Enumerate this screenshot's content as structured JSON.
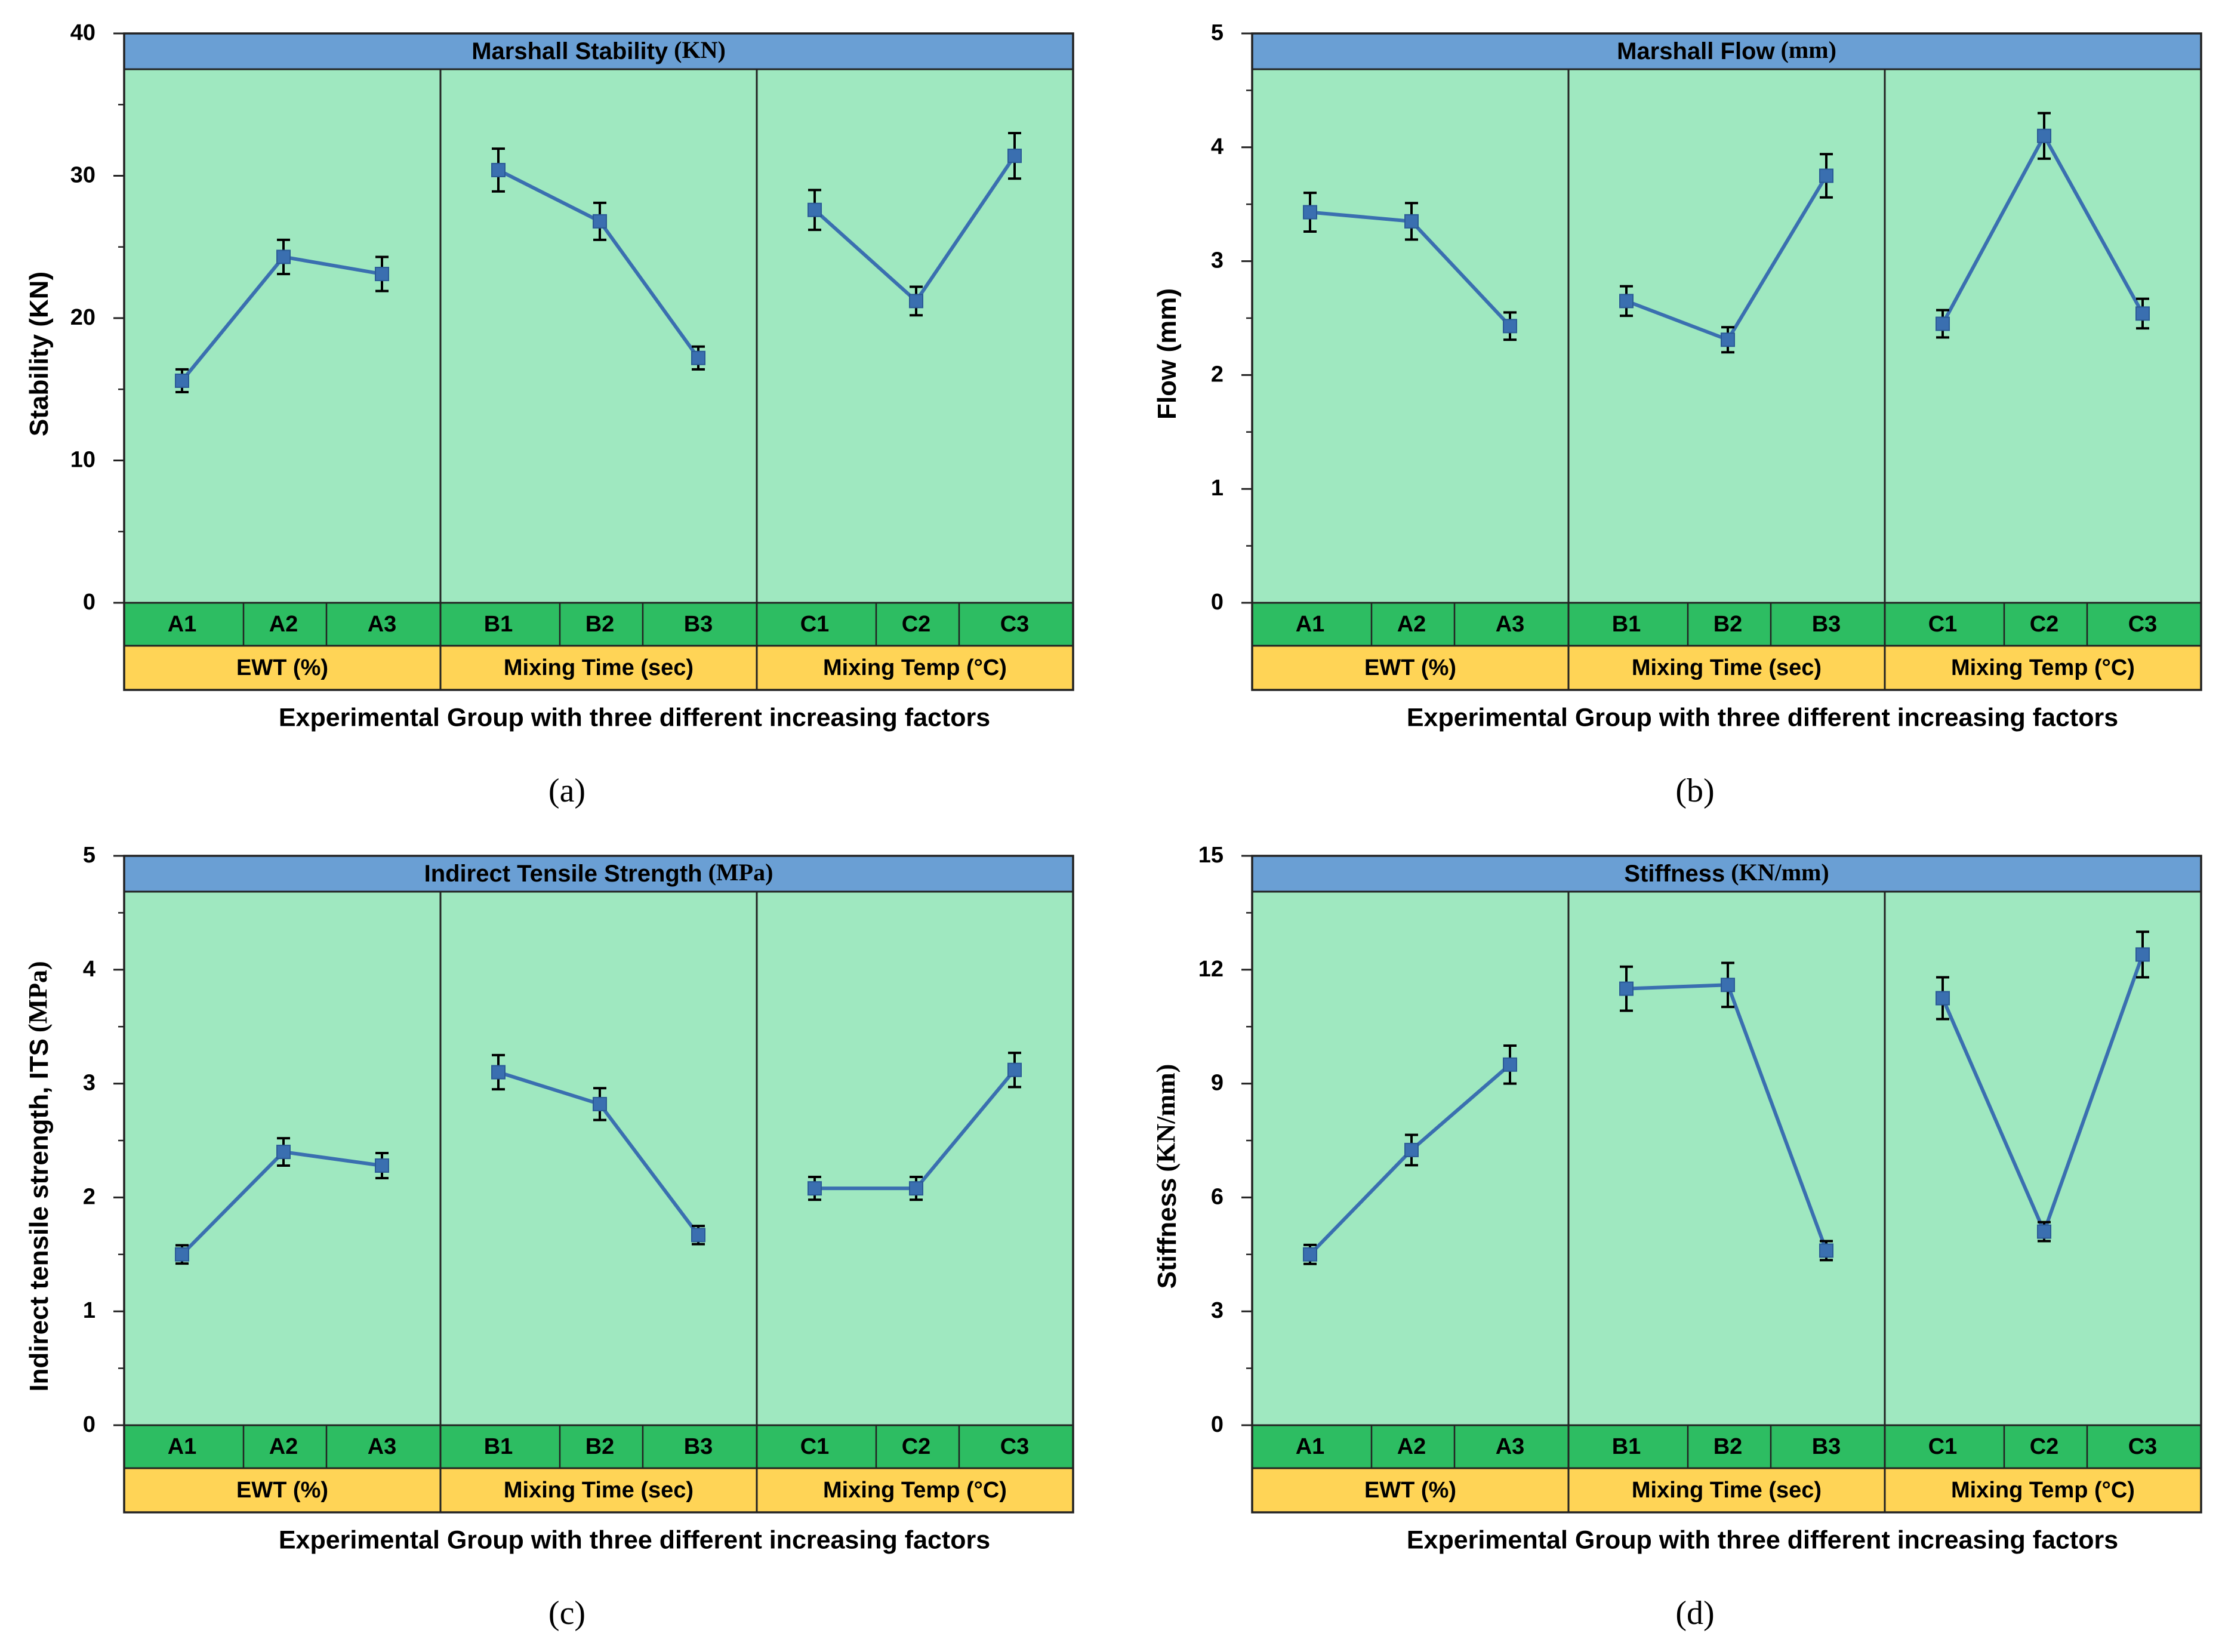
{
  "colors": {
    "plot_bg": "#9fe8c0",
    "title_bar": "#6a9fd4",
    "level_row": "#2dbd62",
    "factor_row": "#ffd456",
    "line": "#3a6fb0",
    "marker": "#3a6fb0",
    "error_bar": "#000000",
    "border": "#222222"
  },
  "chart_data": [
    {
      "type": "line",
      "panel_label": "(a)",
      "title": "Marshall Stability",
      "title_unit": "(KN)",
      "ylabel": "Stability (KN)",
      "xlabel": "Experimental Group with three different increasing factors",
      "ylim": [
        0,
        40
      ],
      "yticks": [
        "0",
        "10",
        "20",
        "30",
        "40"
      ],
      "groups": [
        {
          "factor": "EWT (%)",
          "levels": [
            "A1",
            "A2",
            "A3"
          ],
          "values": [
            15.6,
            24.3,
            23.1
          ],
          "errors": [
            0.8,
            1.2,
            1.2
          ]
        },
        {
          "factor": "Mixing Time (sec)",
          "levels": [
            "B1",
            "B2",
            "B3"
          ],
          "values": [
            30.4,
            26.8,
            17.2
          ],
          "errors": [
            1.5,
            1.3,
            0.8
          ]
        },
        {
          "factor": "Mixing Temp (°C)",
          "levels": [
            "C1",
            "C2",
            "C3"
          ],
          "values": [
            27.6,
            21.2,
            31.4
          ],
          "errors": [
            1.4,
            1.0,
            1.6
          ]
        }
      ]
    },
    {
      "type": "line",
      "panel_label": "(b)",
      "title": "Marshall Flow",
      "title_unit": "(mm)",
      "ylabel": "Flow (mm)",
      "xlabel": "Experimental Group with three different increasing factors",
      "ylim": [
        0,
        5
      ],
      "yticks": [
        "0",
        "1",
        "2",
        "3",
        "4",
        "5"
      ],
      "groups": [
        {
          "factor": "EWT (%)",
          "levels": [
            "A1",
            "A2",
            "A3"
          ],
          "values": [
            3.43,
            3.35,
            2.43
          ],
          "errors": [
            0.17,
            0.16,
            0.12
          ]
        },
        {
          "factor": "Mixing Time (sec)",
          "levels": [
            "B1",
            "B2",
            "B3"
          ],
          "values": [
            2.65,
            2.31,
            3.75
          ],
          "errors": [
            0.13,
            0.11,
            0.19
          ]
        },
        {
          "factor": "Mixing Temp (°C)",
          "levels": [
            "C1",
            "C2",
            "C3"
          ],
          "values": [
            2.45,
            4.1,
            2.54
          ],
          "errors": [
            0.12,
            0.2,
            0.13
          ]
        }
      ]
    },
    {
      "type": "line",
      "panel_label": "(c)",
      "title": "Indirect Tensile Strength",
      "title_unit": "(MPa)",
      "ylabel": "Indirect tensile strength, ITS",
      "ylabel_unit": "(MPa)",
      "xlabel": "Experimental Group with three different increasing factors",
      "ylim": [
        0,
        5
      ],
      "yticks": [
        "0",
        "1",
        "2",
        "3",
        "4",
        "5"
      ],
      "groups": [
        {
          "factor": "EWT (%)",
          "levels": [
            "A1",
            "A2",
            "A3"
          ],
          "values": [
            1.5,
            2.4,
            2.28
          ],
          "errors": [
            0.08,
            0.12,
            0.11
          ]
        },
        {
          "factor": "Mixing Time (sec)",
          "levels": [
            "B1",
            "B2",
            "B3"
          ],
          "values": [
            3.1,
            2.82,
            1.67
          ],
          "errors": [
            0.15,
            0.14,
            0.08
          ]
        },
        {
          "factor": "Mixing Temp (°C)",
          "levels": [
            "C1",
            "C2",
            "C3"
          ],
          "values": [
            2.08,
            2.08,
            3.12
          ],
          "errors": [
            0.1,
            0.1,
            0.15
          ]
        }
      ]
    },
    {
      "type": "line",
      "panel_label": "(d)",
      "title": "Stiffness",
      "title_unit": "(KN/mm)",
      "ylabel": "Stiffness",
      "ylabel_unit": "(KN/mm)",
      "xlabel": "Experimental Group with three different increasing factors",
      "ylim": [
        0,
        15
      ],
      "yticks": [
        "0",
        "3",
        "6",
        "9",
        "12",
        "15"
      ],
      "groups": [
        {
          "factor": "EWT (%)",
          "levels": [
            "A1",
            "A2",
            "A3"
          ],
          "values": [
            4.5,
            7.25,
            9.5
          ],
          "errors": [
            0.25,
            0.4,
            0.5
          ]
        },
        {
          "factor": "Mixing Time (sec)",
          "levels": [
            "B1",
            "B2",
            "B3"
          ],
          "values": [
            11.5,
            11.6,
            4.6
          ],
          "errors": [
            0.58,
            0.58,
            0.25
          ]
        },
        {
          "factor": "Mixing Temp (°C)",
          "levels": [
            "C1",
            "C2",
            "C3"
          ],
          "values": [
            11.25,
            5.1,
            12.4
          ],
          "errors": [
            0.55,
            0.25,
            0.6
          ]
        }
      ]
    }
  ]
}
